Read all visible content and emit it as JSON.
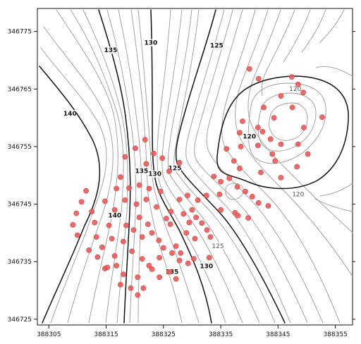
{
  "chart_data": {
    "type": "scatter",
    "title": "",
    "xlabel": "",
    "ylabel": "",
    "xlim": [
      388303,
      388358
    ],
    "ylim": [
      346724,
      346779
    ],
    "x_ticks": [
      388305,
      388315,
      388325,
      388335,
      388345,
      388355
    ],
    "y_ticks": [
      346725,
      346735,
      346745,
      346755,
      346765,
      346775
    ],
    "x_tick_labels": [
      "388305",
      "388315",
      "388325",
      "388335",
      "388345",
      "388355"
    ],
    "y_tick_labels": [
      "346725",
      "346735",
      "346745",
      "346755",
      "346765",
      "346775"
    ],
    "contour_labels": [
      {
        "text": "135",
        "x": 388315.8,
        "y": 346771.5,
        "major": true
      },
      {
        "text": "130",
        "x": 388322.8,
        "y": 346772.8,
        "major": true
      },
      {
        "text": "125",
        "x": 388334.3,
        "y": 346772.3,
        "major": true
      },
      {
        "text": "140",
        "x": 388308.7,
        "y": 346760.5,
        "major": true
      },
      {
        "text": "120",
        "x": 388340.0,
        "y": 346756.5,
        "major": true
      },
      {
        "text": "120",
        "x": 388348.0,
        "y": 346764.8,
        "major": false
      },
      {
        "text": "120",
        "x": 388348.5,
        "y": 346746.5,
        "major": false
      },
      {
        "text": "135",
        "x": 388321.2,
        "y": 346750.5,
        "major": true
      },
      {
        "text": "130",
        "x": 388323.5,
        "y": 346750.0,
        "major": true
      },
      {
        "text": "125",
        "x": 388327.0,
        "y": 346751.0,
        "major": true
      },
      {
        "text": "140",
        "x": 388316.5,
        "y": 346742.8,
        "major": true
      },
      {
        "text": "135",
        "x": 388326.5,
        "y": 346733.0,
        "major": true
      },
      {
        "text": "130",
        "x": 388332.5,
        "y": 346734.0,
        "major": true
      },
      {
        "text": "125",
        "x": 388334.5,
        "y": 346737.5,
        "major": false
      }
    ],
    "points": [
      [
        388340.0,
        346768.5
      ],
      [
        388341.6,
        346766.8
      ],
      [
        388347.4,
        346767.1
      ],
      [
        388348.5,
        346765.8
      ],
      [
        388345.5,
        346763.8
      ],
      [
        388349.4,
        346764.4
      ],
      [
        388347.5,
        346761.8
      ],
      [
        388352.7,
        346760.1
      ],
      [
        388342.5,
        346761.8
      ],
      [
        388344.3,
        346760.0
      ],
      [
        388338.8,
        346759.4
      ],
      [
        388341.5,
        346758.3
      ],
      [
        388338.3,
        346757.4
      ],
      [
        388342.3,
        346757.6
      ],
      [
        388343.7,
        346756.3
      ],
      [
        388341.5,
        346755.2
      ],
      [
        388345.5,
        346755.4
      ],
      [
        388348.5,
        346755.4
      ],
      [
        388338.5,
        346755.0
      ],
      [
        388336.0,
        346754.6
      ],
      [
        388344.0,
        346753.7
      ],
      [
        388344.5,
        346752.5
      ],
      [
        388350.2,
        346753.7
      ],
      [
        388348.3,
        346751.5
      ],
      [
        388349.5,
        346758.3
      ],
      [
        388337.3,
        346752.5
      ],
      [
        388338.3,
        346751.2
      ],
      [
        388342.0,
        346750.5
      ],
      [
        388345.5,
        346749.6
      ],
      [
        388336.5,
        346749.5
      ],
      [
        388335.0,
        346748.9
      ],
      [
        388337.9,
        346748.0
      ],
      [
        388339.3,
        346747.2
      ],
      [
        388340.5,
        346746.3
      ],
      [
        388341.6,
        346745.2
      ],
      [
        388343.3,
        346744.7
      ],
      [
        388334.8,
        346746.7
      ],
      [
        388333.8,
        346749.8
      ],
      [
        388335.0,
        346744.0
      ],
      [
        388332.5,
        346746.5
      ],
      [
        388331.0,
        346745.7
      ],
      [
        388330.0,
        346744.0
      ],
      [
        388330.7,
        346742.7
      ],
      [
        388331.7,
        346741.7
      ],
      [
        388332.6,
        346740.5
      ],
      [
        388333.2,
        346739.3
      ],
      [
        388339.8,
        346742.6
      ],
      [
        388337.5,
        346743.5
      ],
      [
        388338.0,
        346743.0
      ],
      [
        388329.2,
        346746.5
      ],
      [
        388327.8,
        346745.8
      ],
      [
        388326.3,
        346743.7
      ],
      [
        388328.5,
        346743.3
      ],
      [
        388329.5,
        346741.8
      ],
      [
        388329.0,
        346740.0
      ],
      [
        388330.5,
        346739.0
      ],
      [
        388321.8,
        346756.2
      ],
      [
        388320.1,
        346754.7
      ],
      [
        388322.0,
        346752.0
      ],
      [
        388324.8,
        346753.0
      ],
      [
        388323.3,
        346753.8
      ],
      [
        388327.8,
        346752.2
      ],
      [
        388326.0,
        346750.7
      ],
      [
        388318.3,
        346753.2
      ],
      [
        388317.5,
        346749.7
      ],
      [
        388319.0,
        346747.8
      ],
      [
        388320.8,
        346748.3
      ],
      [
        388322.5,
        346747.7
      ],
      [
        388324.5,
        346747.2
      ],
      [
        388316.8,
        346747.7
      ],
      [
        388314.8,
        346745.5
      ],
      [
        388316.5,
        346744.0
      ],
      [
        388318.3,
        346745.7
      ],
      [
        388320.3,
        346745.0
      ],
      [
        388322.0,
        346745.8
      ],
      [
        388323.8,
        346744.5
      ],
      [
        388320.8,
        346742.7
      ],
      [
        388322.3,
        346741.5
      ],
      [
        388325.5,
        346742.5
      ],
      [
        388326.2,
        346741.5
      ],
      [
        388318.5,
        346741.3
      ],
      [
        388319.8,
        346740.5
      ],
      [
        388321.3,
        346739.3
      ],
      [
        388323.0,
        346740.0
      ],
      [
        388324.2,
        346738.7
      ],
      [
        388325.0,
        346737.4
      ],
      [
        388327.2,
        346737.7
      ],
      [
        388326.5,
        346736.5
      ],
      [
        388327.8,
        346735.2
      ],
      [
        388329.3,
        346734.7
      ],
      [
        388330.3,
        346735.5
      ],
      [
        388333.0,
        346735.7
      ],
      [
        388311.5,
        346747.3
      ],
      [
        388310.7,
        346745.4
      ],
      [
        388309.8,
        346743.4
      ],
      [
        388309.2,
        346741.4
      ],
      [
        388312.5,
        346743.7
      ],
      [
        388313.0,
        346741.8
      ],
      [
        388315.5,
        346741.3
      ],
      [
        388310.0,
        346739.6
      ],
      [
        388313.3,
        346739.3
      ],
      [
        388316.0,
        346739.0
      ],
      [
        388318.0,
        346738.5
      ],
      [
        388319.5,
        346736.8
      ],
      [
        388312.0,
        346737.0
      ],
      [
        388314.3,
        346737.5
      ],
      [
        388316.5,
        346736.0
      ],
      [
        388321.3,
        346735.5
      ],
      [
        388324.3,
        346735.7
      ],
      [
        388322.5,
        346734.3
      ],
      [
        388313.5,
        346735.8
      ],
      [
        388314.8,
        346733.8
      ],
      [
        388318.0,
        346732.8
      ],
      [
        388317.5,
        346731.0
      ],
      [
        388320.5,
        346732.3
      ],
      [
        388319.3,
        346730.4
      ],
      [
        388321.5,
        346730.4
      ],
      [
        388320.5,
        346729.2
      ],
      [
        388323.0,
        346733.7
      ],
      [
        388324.3,
        346732.3
      ],
      [
        388315.2,
        346734.0
      ],
      [
        388316.8,
        346734.3
      ],
      [
        388326.0,
        346733.2
      ],
      [
        388327.2,
        346732.0
      ],
      [
        388328.0,
        346736.5
      ]
    ],
    "point_color": "#ee5757",
    "contour_color": "#999999",
    "major_contour_color": "#111111"
  }
}
